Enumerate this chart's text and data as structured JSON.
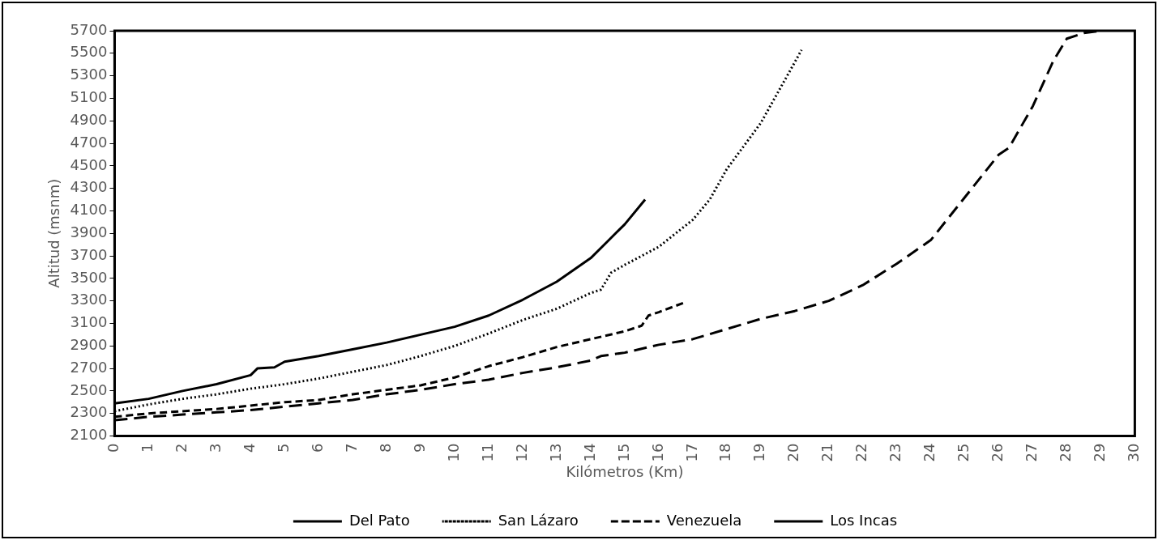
{
  "chart_data": {
    "type": "line",
    "xlabel": "Kilómetros (Km)",
    "ylabel": "Altitud (msnm)",
    "xlim": [
      0,
      30
    ],
    "xticks": [
      0,
      1,
      2,
      3,
      4,
      5,
      6,
      7,
      8,
      9,
      10,
      11,
      12,
      13,
      14,
      15,
      16,
      17,
      18,
      19,
      20,
      21,
      22,
      23,
      24,
      25,
      26,
      27,
      28,
      29,
      30
    ],
    "ylim": [
      2100,
      5700
    ],
    "yticks": [
      2100,
      2300,
      2500,
      2700,
      2900,
      3100,
      3300,
      3500,
      3700,
      3900,
      4100,
      4300,
      4500,
      4700,
      4900,
      5100,
      5300,
      5500,
      5700
    ],
    "grid": false,
    "legend": "bottom",
    "marker": "none",
    "series": [
      {
        "name": "Del Pato",
        "color": "#000000",
        "line_style": "solid",
        "x": [
          0,
          1,
          2,
          3,
          4,
          4.2,
          4.7,
          5,
          6,
          7,
          8,
          9,
          10,
          11,
          12,
          13,
          14,
          14.5,
          15,
          15.6
        ],
        "values": [
          2390,
          2430,
          2500,
          2560,
          2640,
          2700,
          2710,
          2760,
          2810,
          2870,
          2930,
          3000,
          3070,
          3170,
          3310,
          3470,
          3680,
          3830,
          3980,
          4200
        ]
      },
      {
        "name": "San Lázaro",
        "color": "#000000",
        "line_style": "dotted",
        "x": [
          0,
          1,
          2,
          3,
          4,
          5,
          6,
          7,
          8,
          9,
          10,
          11,
          12,
          13,
          14,
          14.3,
          14.6,
          15,
          16,
          17,
          17.5,
          18,
          19,
          20,
          20.2
        ],
        "values": [
          2320,
          2380,
          2430,
          2470,
          2520,
          2560,
          2610,
          2670,
          2730,
          2810,
          2900,
          3010,
          3130,
          3230,
          3370,
          3400,
          3550,
          3620,
          3780,
          4020,
          4200,
          4470,
          4880,
          5420,
          5530
        ]
      },
      {
        "name": "Venezuela",
        "color": "#000000",
        "line_style": "dashed",
        "x": [
          0,
          1,
          2,
          3,
          4,
          5,
          6,
          7,
          8,
          9,
          10,
          11,
          12,
          13,
          14,
          15,
          15.5,
          15.7,
          16,
          16.8
        ],
        "values": [
          2270,
          2300,
          2320,
          2340,
          2370,
          2400,
          2420,
          2470,
          2510,
          2550,
          2620,
          2720,
          2800,
          2890,
          2960,
          3030,
          3080,
          3170,
          3200,
          3290
        ]
      },
      {
        "name": "Los Incas",
        "color": "#000000",
        "line_style": "dashed",
        "x": [
          0,
          1,
          2,
          3,
          4,
          5,
          6,
          7,
          8,
          9,
          10,
          11,
          12,
          13,
          14,
          14.3,
          15,
          16,
          17,
          18,
          19,
          20,
          21,
          22,
          23,
          24,
          25,
          26,
          26.3,
          27,
          27.6,
          28,
          28.5,
          29
        ],
        "values": [
          2240,
          2270,
          2290,
          2310,
          2330,
          2360,
          2390,
          2420,
          2470,
          2510,
          2560,
          2600,
          2660,
          2710,
          2770,
          2810,
          2840,
          2910,
          2960,
          3050,
          3140,
          3210,
          3300,
          3440,
          3630,
          3840,
          4220,
          4600,
          4660,
          5030,
          5430,
          5630,
          5680,
          5700
        ]
      }
    ]
  }
}
